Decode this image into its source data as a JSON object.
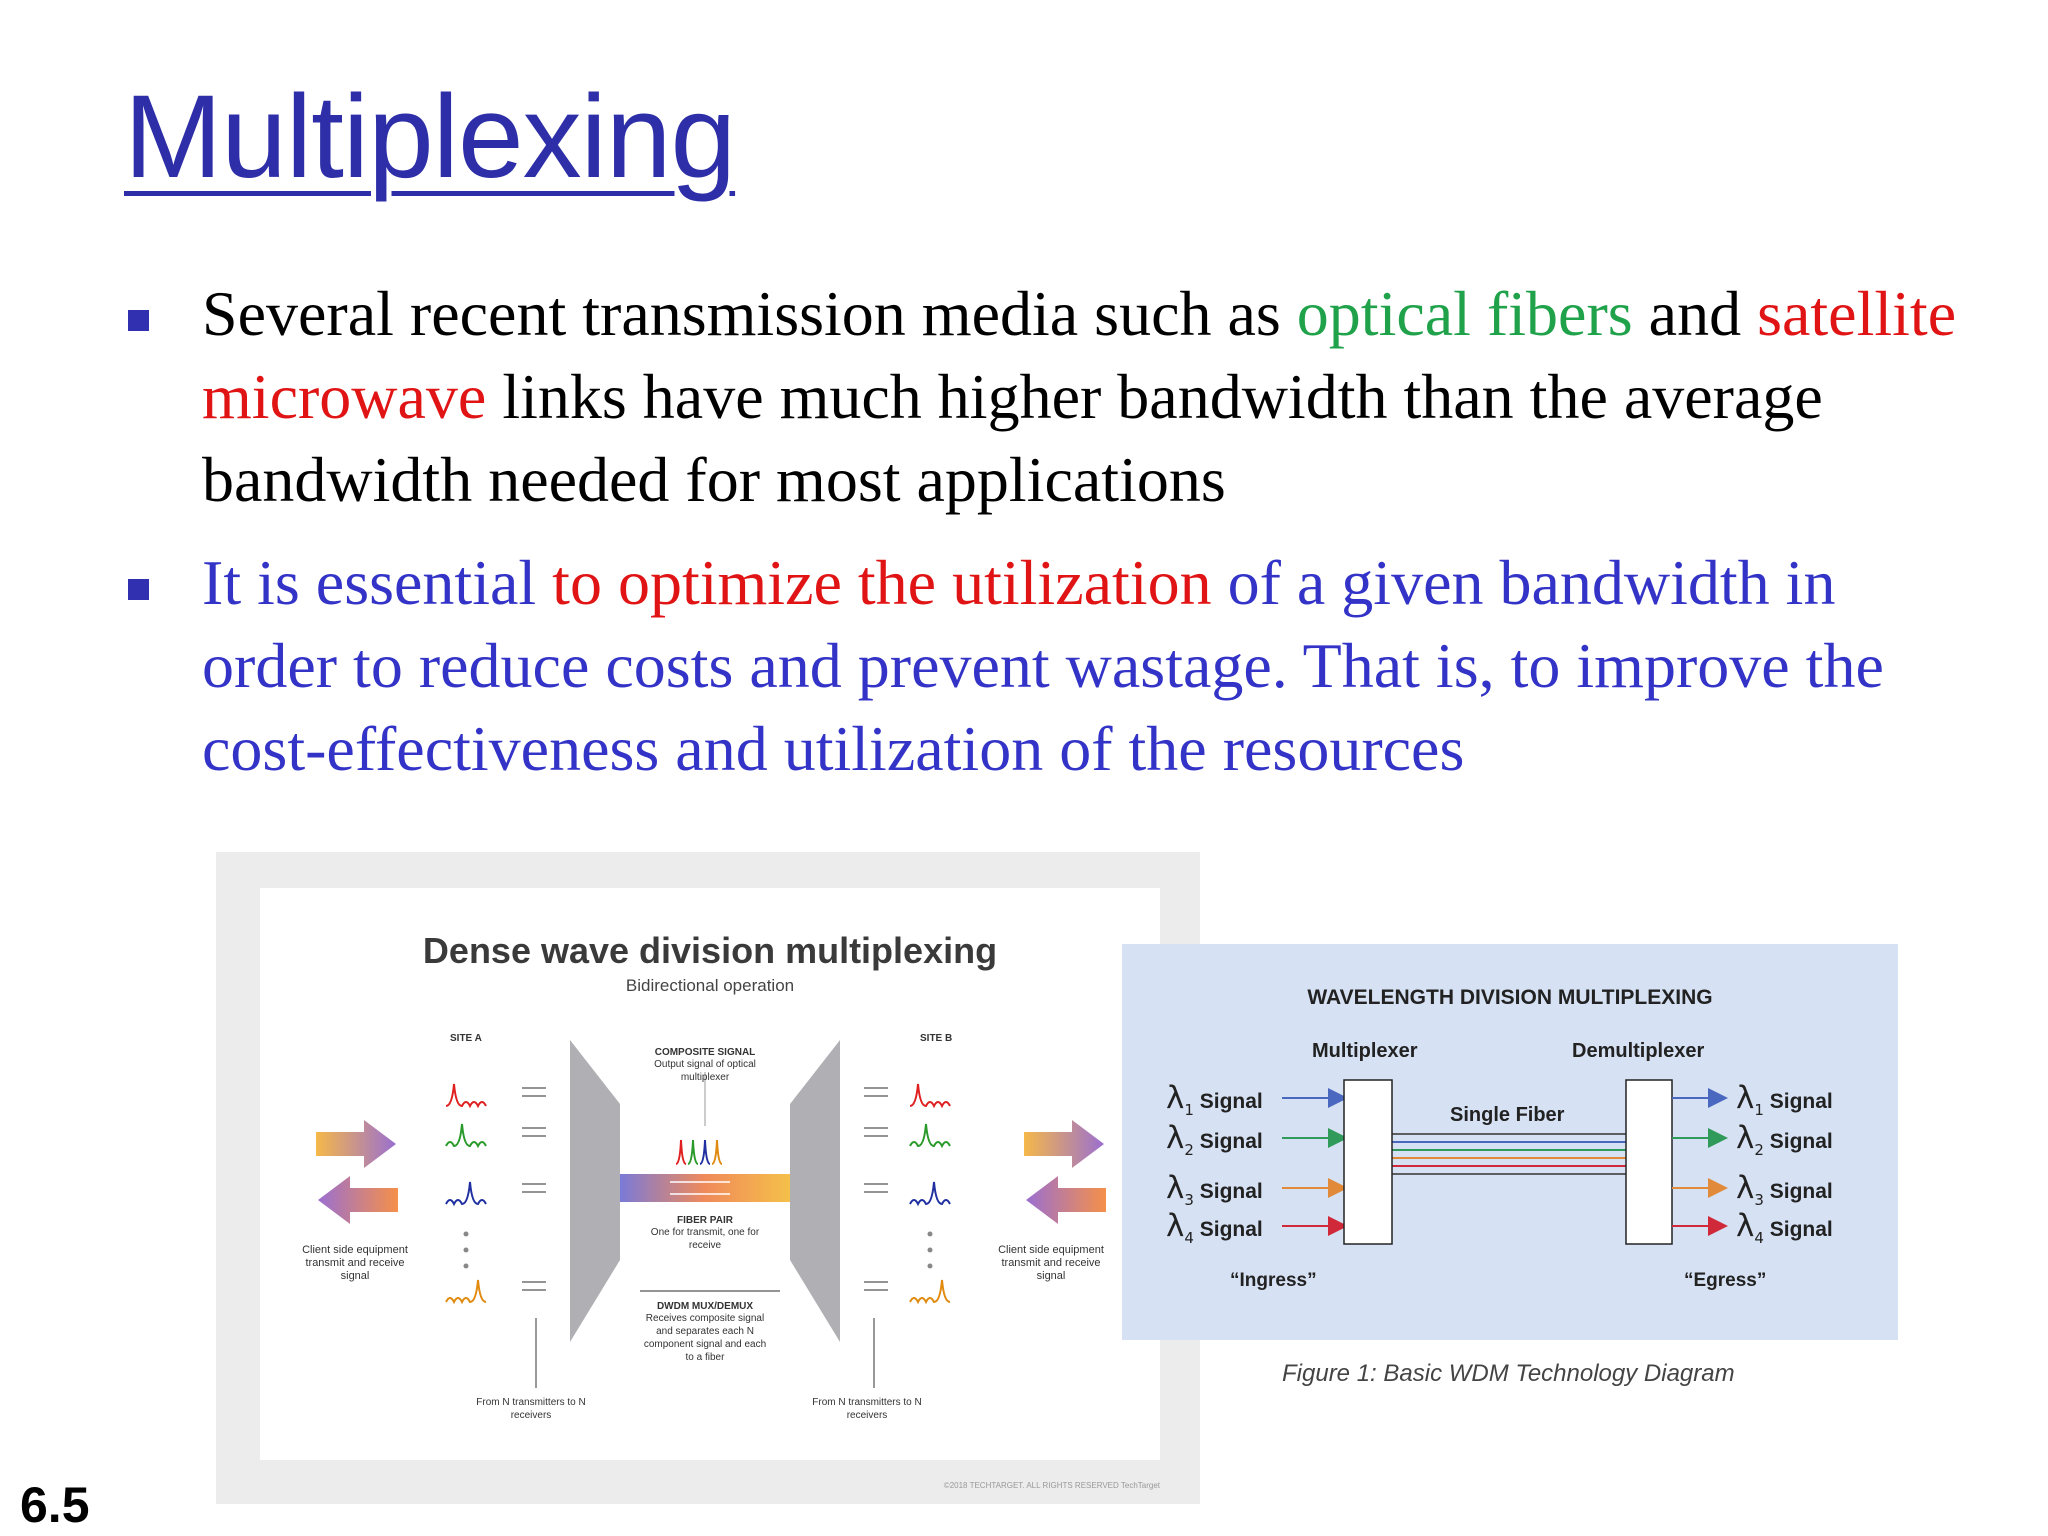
{
  "title": "Multiplexing",
  "bullets": [
    {
      "segments": [
        {
          "text": "Several recent transmission media such as ",
          "color": "#000000"
        },
        {
          "text": "optical fibers",
          "color": "#1fa24a"
        },
        {
          "text": " and ",
          "color": "#000000"
        },
        {
          "text": "satellite microwave",
          "color": "#e01414"
        },
        {
          "text": " links have much higher bandwidth than the average bandwidth needed for most applications",
          "color": "#000000"
        }
      ]
    },
    {
      "segments": [
        {
          "text": "It is essential ",
          "color": "#3333c8"
        },
        {
          "text": "to optimize the utilization",
          "color": "#e01414"
        },
        {
          "text": " of a given bandwidth in order to reduce costs and prevent wastage. That is, to improve the cost-effectiveness and utilization of the resources",
          "color": "#3333c8"
        }
      ]
    }
  ],
  "slide_number": "6.5",
  "dwdm": {
    "title": "Dense wave division multiplexing",
    "subtitle": "Bidirectional operation",
    "site_a": "SITE A",
    "site_b": "SITE B",
    "composite_title": "COMPOSITE SIGNAL",
    "composite_desc": "Output signal of optical multiplexer",
    "fiber_title": "FIBER PAIR",
    "fiber_desc": "One for transmit, one for receive",
    "mux_title": "DWDM MUX/DEMUX",
    "mux_desc": "Receives composite signal and separates each N component signal and each to a fiber",
    "client_left": "Client side equipment transmit and receive signal",
    "client_right": "Client side equipment transmit and receive signal",
    "from_left": "From N transmitters to N receivers",
    "from_right": "From N transmitters to N receivers",
    "watermark": "©2018 TECHTARGET. ALL RIGHTS RESERVED  TechTarget"
  },
  "wdm": {
    "title": "WAVELENGTH DIVISION MULTIPLEXING",
    "mux_label": "Multiplexer",
    "demux_label": "Demultiplexer",
    "fiber_label": "Single Fiber",
    "ingress": "“Ingress”",
    "egress": "“Egress”",
    "signal_word": "Signal",
    "lambda": "λ",
    "signals": [
      {
        "sub": "1",
        "color": "#4a68c0"
      },
      {
        "sub": "2",
        "color": "#2f9a5a"
      },
      {
        "sub": "3",
        "color": "#e08a3a"
      },
      {
        "sub": "4",
        "color": "#d02a3a"
      }
    ],
    "caption": "Figure 1: Basic WDM Technology Diagram"
  },
  "colors": {
    "title": "#2e2fa8",
    "bullet": "#3030b0",
    "accent_green": "#1fa24a",
    "accent_red": "#e01414",
    "body_blue": "#3333c8"
  }
}
